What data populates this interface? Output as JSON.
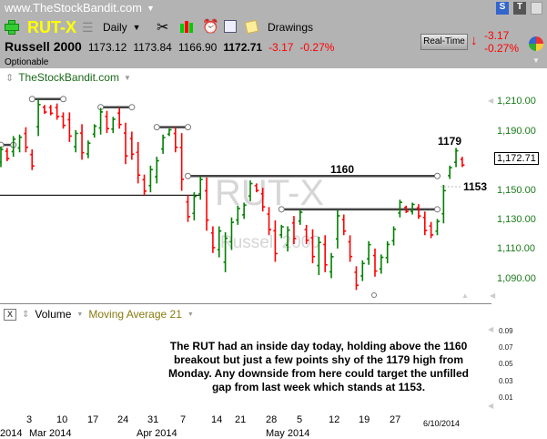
{
  "header": {
    "site": "www.TheStockBandit.com",
    "symbol": "RUT-X",
    "interval": "Daily",
    "drawings_label": "Drawings",
    "name": "Russell 2000",
    "open": "1173.12",
    "high": "1173.84",
    "low": "1166.90",
    "last": "1172.71",
    "change": "-3.17",
    "change_pct": "-0.27%",
    "optionable": "Optionable",
    "realtime_label": "Real-Time",
    "rt_change": "-3.17",
    "rt_change_pct": "-0.27%"
  },
  "chart": {
    "source_label": "TheStockBandit.com",
    "watermark_symbol": "RUT-X",
    "watermark_name": "Russell 2000",
    "y_axis": [
      "1,210.00",
      "1,190.00",
      "1,150.00",
      "1,130.00",
      "1,110.00",
      "1,090.00"
    ],
    "current_price": "1,172.71",
    "annotations": {
      "high": "1179",
      "breakout": "1160",
      "gap": "1153"
    },
    "colors": {
      "up": "#008000",
      "down": "#ff0000",
      "axis": "#1a7a1a"
    }
  },
  "chart_data": {
    "type": "ohlc-bar",
    "ylim": [
      1080,
      1215
    ],
    "bars": [
      [
        1180,
        1166,
        1
      ],
      [
        1179,
        1170,
        0
      ],
      [
        1187,
        1173,
        1
      ],
      [
        1188,
        1176,
        1
      ],
      [
        1193,
        1176,
        0
      ],
      [
        1178,
        1164,
        0
      ],
      [
        1212,
        1187,
        1
      ],
      [
        1208,
        1202,
        0
      ],
      [
        1208,
        1201,
        0
      ],
      [
        1209,
        1198,
        0
      ],
      [
        1203,
        1192,
        0
      ],
      [
        1203,
        1183,
        0
      ],
      [
        1191,
        1176,
        1
      ],
      [
        1195,
        1171,
        0
      ],
      [
        1184,
        1172,
        1
      ],
      [
        1195,
        1186,
        1
      ],
      [
        1206,
        1188,
        1
      ],
      [
        1204,
        1189,
        0
      ],
      [
        1200,
        1189,
        1
      ],
      [
        1206,
        1192,
        0
      ],
      [
        1196,
        1168,
        0
      ],
      [
        1190,
        1171,
        0
      ],
      [
        1183,
        1155,
        0
      ],
      [
        1161,
        1147,
        0
      ],
      [
        1167,
        1149,
        1
      ],
      [
        1173,
        1155,
        1
      ],
      [
        1188,
        1175,
        1
      ],
      [
        1192,
        1187,
        1
      ],
      [
        1193,
        1176,
        0
      ],
      [
        1189,
        1150,
        0
      ],
      [
        1147,
        1129,
        0
      ],
      [
        1149,
        1130,
        1
      ],
      [
        1160,
        1144,
        1
      ],
      [
        1159,
        1123,
        0
      ],
      [
        1126,
        1108,
        0
      ],
      [
        1126,
        1105,
        1
      ],
      [
        1122,
        1095,
        1
      ],
      [
        1132,
        1110,
        1
      ],
      [
        1140,
        1127,
        1
      ],
      [
        1142,
        1131,
        1
      ],
      [
        1157,
        1143,
        1
      ],
      [
        1155,
        1149,
        0
      ],
      [
        1152,
        1136,
        0
      ],
      [
        1139,
        1120,
        0
      ],
      [
        1130,
        1102,
        0
      ],
      [
        1127,
        1118,
        1
      ],
      [
        1126,
        1109,
        1
      ],
      [
        1133,
        1114,
        0
      ],
      [
        1137,
        1127,
        1
      ],
      [
        1127,
        1114,
        0
      ],
      [
        1124,
        1101,
        0
      ],
      [
        1119,
        1093,
        1
      ],
      [
        1120,
        1095,
        0
      ],
      [
        1108,
        1091,
        1
      ],
      [
        1137,
        1111,
        1
      ],
      [
        1134,
        1120,
        0
      ],
      [
        1120,
        1102,
        0
      ],
      [
        1099,
        1083,
        0
      ],
      [
        1103,
        1089,
        1
      ],
      [
        1116,
        1100,
        1
      ],
      [
        1111,
        1092,
        0
      ],
      [
        1107,
        1094,
        1
      ],
      [
        1116,
        1101,
        1
      ],
      [
        1126,
        1113,
        1
      ],
      [
        1144,
        1132,
        1
      ],
      [
        1140,
        1135,
        0
      ],
      [
        1142,
        1134,
        1
      ],
      [
        1141,
        1131,
        0
      ],
      [
        1136,
        1120,
        0
      ],
      [
        1129,
        1118,
        0
      ],
      [
        1131,
        1120,
        1
      ],
      [
        1154,
        1128,
        1
      ],
      [
        1167,
        1158,
        1
      ],
      [
        1179,
        1166,
        1
      ],
      [
        1173,
        1166,
        0
      ]
    ],
    "levels": [
      {
        "price": 1181,
        "from": 0,
        "to": 2
      },
      {
        "price": 1212,
        "from": 5,
        "to": 10
      },
      {
        "price": 1206.5,
        "from": 16,
        "to": 21
      },
      {
        "price": 1193,
        "from": 25,
        "to": 30
      },
      {
        "price": 1160,
        "from": 30,
        "to": 70
      },
      {
        "price": 1147,
        "from": -1,
        "to": 32
      },
      {
        "price": 1137.5,
        "from": 45,
        "to": 70
      }
    ]
  },
  "volume_pane": {
    "label": "Volume",
    "indicator": "Moving Average 21",
    "y_axis": [
      "0.09",
      "0.07",
      "0.05",
      "0.03",
      "0.01"
    ],
    "note": "The RUT had an inside day today, holding above the 1160 breakout but just a few points shy of the 1179 high from Monday. Any downside from here could target the unfilled gap from last week which stands at 1153."
  },
  "x_axis": {
    "days": [
      "3",
      "10",
      "17",
      "24",
      "31",
      "7",
      "14",
      "21",
      "28",
      "5",
      "12",
      "19",
      "27"
    ],
    "date": "6/10/2014",
    "months": [
      "2014",
      "Mar 2014",
      "Apr 2014",
      "May 2014"
    ]
  }
}
